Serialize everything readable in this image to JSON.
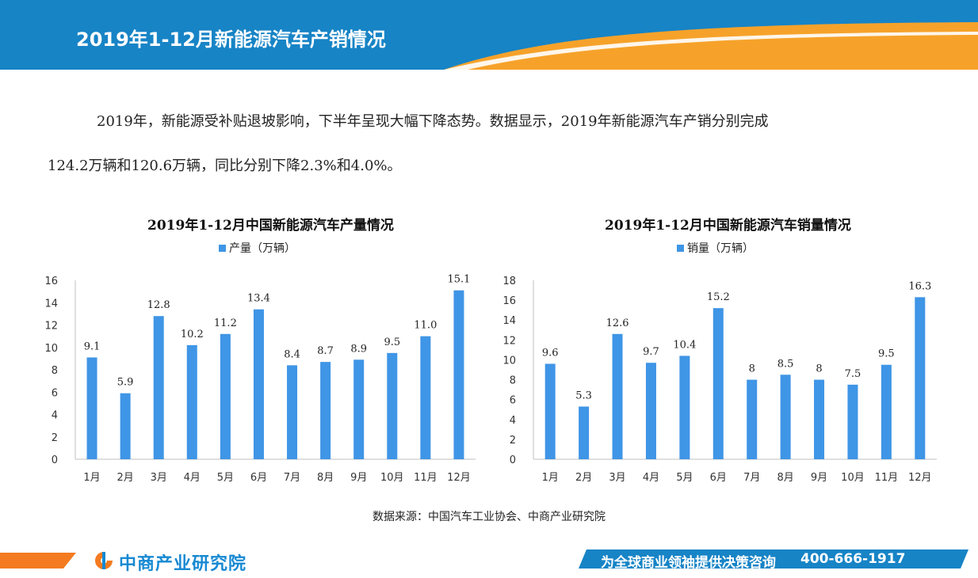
{
  "colors": {
    "header_blue": "#1784c6",
    "accent_orange": "#f6a22a",
    "bar_blue": "#3f95e6",
    "footer_blue": "#1784c6"
  },
  "header": {
    "title": "2019年1-12月新能源汽车产销情况"
  },
  "paragraph": {
    "line1": "2019年，新能源受补贴退坡影响，下半年呈现大幅下降态势。数据显示，2019年新能源汽车产销分别完成",
    "line2": "124.2万辆和120.6万辆，同比分别下降2.3%和4.0%。"
  },
  "chart_data": [
    {
      "type": "bar",
      "title": "2019年1-12月中国新能源汽车产量情况",
      "categories": [
        "1月",
        "2月",
        "3月",
        "4月",
        "5月",
        "6月",
        "7月",
        "8月",
        "9月",
        "10月",
        "11月",
        "12月"
      ],
      "series": [
        {
          "name": "产量（万辆）",
          "values": [
            9.1,
            5.9,
            12.8,
            10.2,
            11.2,
            13.4,
            8.4,
            8.7,
            8.9,
            9.5,
            11.0,
            15.1
          ]
        }
      ],
      "value_labels": [
        "9.1",
        "5.9",
        "12.8",
        "10.2",
        "11.2",
        "13.4",
        "8.4",
        "8.7",
        "8.9",
        "9.5",
        "11.0",
        "15.1"
      ],
      "ylim": [
        0,
        16
      ],
      "yticks": [
        0,
        2,
        4,
        6,
        8,
        10,
        12,
        14,
        16
      ],
      "legend": "top-center",
      "grid": false
    },
    {
      "type": "bar",
      "title": "2019年1-12月中国新能源汽车销量情况",
      "categories": [
        "1月",
        "2月",
        "3月",
        "4月",
        "5月",
        "6月",
        "7月",
        "8月",
        "9月",
        "10月",
        "11月",
        "12月"
      ],
      "series": [
        {
          "name": "销量（万辆）",
          "values": [
            9.6,
            5.3,
            12.6,
            9.7,
            10.4,
            15.2,
            8,
            8.5,
            8,
            7.5,
            9.5,
            16.3
          ]
        }
      ],
      "value_labels": [
        "9.6",
        "5.3",
        "12.6",
        "9.7",
        "10.4",
        "15.2",
        "8",
        "8.5",
        "8",
        "7.5",
        "9.5",
        "16.3"
      ],
      "ylim": [
        0,
        18
      ],
      "yticks": [
        0,
        2,
        4,
        6,
        8,
        10,
        12,
        14,
        16,
        18
      ],
      "legend": "top-center",
      "grid": false
    }
  ],
  "source": "数据来源：中国汽车工业协会、中商产业研究院",
  "footer": {
    "logo_text": "中商产业研究院",
    "slogan": "为全球商业领袖提供决策咨询",
    "phone": "400-666-1917"
  }
}
